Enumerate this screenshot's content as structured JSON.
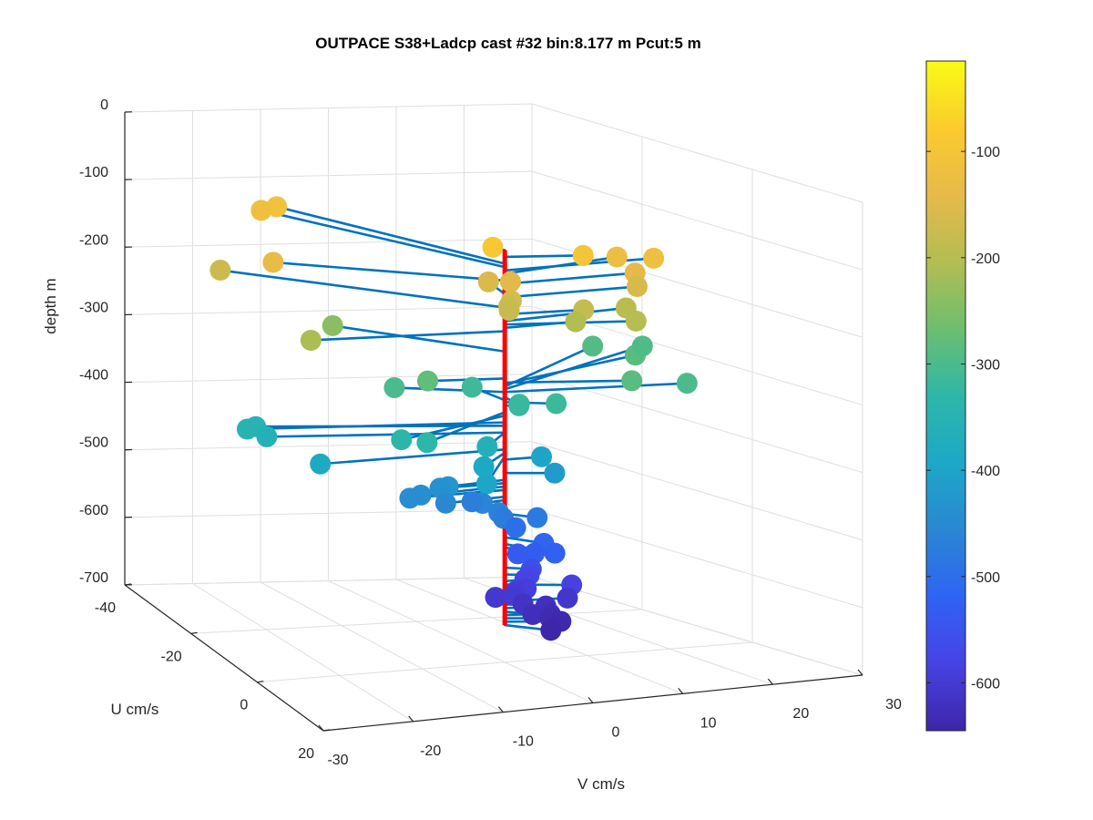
{
  "chart_data": {
    "type": "scatter",
    "title": "OUTPACE S38+Ladcp cast #32 bin:8.177 m  Pcut:5 m",
    "zlabel": "depth m",
    "ulabel": "U cm/s",
    "vlabel": "V cm/s",
    "z_ticks": [
      "0",
      "-100",
      "-200",
      "-300",
      "-400",
      "-500",
      "-600",
      "-700"
    ],
    "u_ticks": [
      "-40",
      "-20",
      "0",
      "20"
    ],
    "v_ticks": [
      "-30",
      "-20",
      "-10",
      "0",
      "10",
      "20",
      "30"
    ],
    "colorbar_ticks": [
      "-100",
      "-200",
      "-300",
      "-400",
      "-500",
      "-600"
    ],
    "zlim": [
      -700,
      0
    ],
    "ulim": [
      -40,
      20
    ],
    "vlim": [
      -30,
      30
    ],
    "colorbar_range": [
      -645,
      -15
    ],
    "colormap": [
      "#3e26a8",
      "#4742e4",
      "#2e64f3",
      "#2a87d3",
      "#1ca8c7",
      "#2db7a8",
      "#6dbe6e",
      "#b3bd52",
      "#e7b94a",
      "#fbcb2d",
      "#f9fb15"
    ],
    "stick_color": "#0072bd",
    "axis_color": "#ff0000",
    "points": [
      {
        "u": -1.6,
        "v": -0.6,
        "z": -90
      },
      {
        "u": 2.1,
        "v": 8.3,
        "z": -100
      },
      {
        "u": -29.8,
        "v": -13.5,
        "z": -110
      },
      {
        "u": -29.9,
        "v": -15.6,
        "z": -115
      },
      {
        "u": -0.1,
        "v": 18.1,
        "z": -120
      },
      {
        "u": -3.5,
        "v": 15.7,
        "z": -125
      },
      {
        "u": -14.1,
        "v": -21.9,
        "z": -135
      },
      {
        "u": -0.2,
        "v": 15.9,
        "z": -140
      },
      {
        "u": -2.4,
        "v": 2.0,
        "z": -146
      },
      {
        "u": -5.7,
        "v": 1.1,
        "z": -155
      },
      {
        "u": -0.1,
        "v": 16.1,
        "z": -160
      },
      {
        "u": 0.2,
        "v": 0.7,
        "z": -165
      },
      {
        "u": -22.8,
        "v": -24.8,
        "z": -175
      },
      {
        "u": -0.4,
        "v": 0.7,
        "z": -175
      },
      {
        "u": -0.1,
        "v": 0.6,
        "z": -180
      },
      {
        "u": 0.8,
        "v": 9.1,
        "z": -185
      },
      {
        "u": -1.5,
        "v": 15.6,
        "z": -195
      },
      {
        "u": 3.2,
        "v": 14.0,
        "z": -200
      },
      {
        "u": -0.2,
        "v": 8.7,
        "z": -205
      },
      {
        "u": -2.5,
        "v": -22.4,
        "z": -210
      },
      {
        "u": -15.7,
        "v": -13.4,
        "z": -240
      },
      {
        "u": -1.5,
        "v": -8.6,
        "z": -280
      },
      {
        "u": 3.7,
        "v": 13.2,
        "z": -286
      },
      {
        "u": -8.4,
        "v": 21.1,
        "z": -288
      },
      {
        "u": -15.3,
        "v": 20.2,
        "z": -292
      },
      {
        "u": -15.2,
        "v": 26.6,
        "z": -296
      },
      {
        "u": 2.7,
        "v": 20.4,
        "z": -300
      },
      {
        "u": -5.3,
        "v": -10.8,
        "z": -300
      },
      {
        "u": 3.3,
        "v": 0.0,
        "z": -308
      },
      {
        "u": -6.5,
        "v": -0.5,
        "z": -312
      },
      {
        "u": 2.4,
        "v": 4.9,
        "z": -315
      },
      {
        "u": 0.6,
        "v": 1.4,
        "z": -320
      },
      {
        "u": 9.5,
        "v": -13.9,
        "z": -330
      },
      {
        "u": 6.2,
        "v": -15.4,
        "z": -335
      },
      {
        "u": -5.2,
        "v": -29.1,
        "z": -345
      },
      {
        "u": -7.2,
        "v": -27.2,
        "z": -350
      },
      {
        "u": -5.6,
        "v": -26.5,
        "z": -360
      },
      {
        "u": 5.2,
        "v": -4.8,
        "z": -360
      },
      {
        "u": -0.1,
        "v": -22.3,
        "z": -385
      },
      {
        "u": 5.0,
        "v": -5.1,
        "z": -390
      },
      {
        "u": 10.6,
        "v": -7.5,
        "z": -395
      },
      {
        "u": 0.1,
        "v": 4.4,
        "z": -400
      },
      {
        "u": 1.7,
        "v": 5.1,
        "z": -420
      },
      {
        "u": 0.9,
        "v": -7.3,
        "z": -430
      },
      {
        "u": -0.1,
        "v": -7.8,
        "z": -435
      },
      {
        "u": 0.7,
        "v": -10.5,
        "z": -440
      },
      {
        "u": 0.2,
        "v": -11.6,
        "z": -445
      },
      {
        "u": 0.7,
        "v": -7.5,
        "z": -455
      },
      {
        "u": 0.6,
        "v": -3.0,
        "z": -460
      },
      {
        "u": 3.6,
        "v": -2.6,
        "z": -465
      },
      {
        "u": -3.2,
        "v": -2.3,
        "z": -470
      },
      {
        "u": 3.3,
        "v": -1.9,
        "z": -475
      },
      {
        "u": 2.8,
        "v": 2.4,
        "z": -480
      },
      {
        "u": 0.6,
        "v": 1.0,
        "z": -500
      },
      {
        "u": 3.9,
        "v": 2.6,
        "z": -515
      },
      {
        "u": 5.6,
        "v": 3.0,
        "z": -525
      },
      {
        "u": 3.5,
        "v": 1.7,
        "z": -530
      },
      {
        "u": 0.3,
        "v": 1.4,
        "z": -540
      },
      {
        "u": 1.5,
        "v": 2.4,
        "z": -560
      },
      {
        "u": 1.2,
        "v": 2.3,
        "z": -570
      },
      {
        "u": -0.1,
        "v": 2.5,
        "z": -580
      },
      {
        "u": 2.5,
        "v": 6.7,
        "z": -585
      },
      {
        "u": 1.1,
        "v": 2.0,
        "z": -590
      },
      {
        "u": 0.3,
        "v": 1.2,
        "z": -595
      },
      {
        "u": 0.6,
        "v": 0.7,
        "z": -600
      },
      {
        "u": -0.6,
        "v": -0.8,
        "z": -605
      },
      {
        "u": 0.7,
        "v": 7.2,
        "z": -610
      },
      {
        "u": 0.2,
        "v": 2.1,
        "z": -615
      },
      {
        "u": 0.5,
        "v": 4.7,
        "z": -620
      },
      {
        "u": 2.2,
        "v": 2.2,
        "z": -625
      },
      {
        "u": 1.1,
        "v": 4.9,
        "z": -630
      },
      {
        "u": 1.4,
        "v": 4.7,
        "z": -635
      },
      {
        "u": 1.8,
        "v": 5.8,
        "z": -640
      },
      {
        "u": 3.8,
        "v": 3.5,
        "z": -645
      }
    ]
  }
}
